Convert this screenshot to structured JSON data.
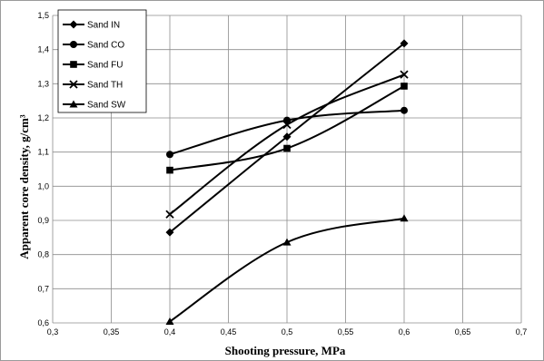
{
  "chart_data": {
    "type": "line",
    "xlabel": "Shooting pressure, MPa",
    "ylabel": "Apparent core density, g/cm³",
    "xlim": [
      0.3,
      0.7
    ],
    "ylim": [
      0.6,
      1.5
    ],
    "x_ticks": [
      "0,3",
      "0,35",
      "0,4",
      "0,45",
      "0,5",
      "0,55",
      "0,6",
      "0,65",
      "0,7"
    ],
    "y_ticks": [
      "0,6",
      "0,7",
      "0,8",
      "0,9",
      "1,0",
      "1,1",
      "1,2",
      "1,3",
      "1,4",
      "1,5"
    ],
    "grid": "vertical and horizontal",
    "legend_position": "top-left",
    "series": [
      {
        "name": "Sand IN",
        "marker": "diamond",
        "x": [
          0.4,
          0.5,
          0.6
        ],
        "y": [
          0.865,
          1.145,
          1.418
        ]
      },
      {
        "name": "Sand CO",
        "marker": "circle",
        "x": [
          0.4,
          0.5,
          0.6
        ],
        "y": [
          1.093,
          1.193,
          1.222
        ]
      },
      {
        "name": "Sand FU",
        "marker": "square",
        "x": [
          0.4,
          0.5,
          0.6
        ],
        "y": [
          1.047,
          1.111,
          1.293
        ]
      },
      {
        "name": "Sand TH",
        "marker": "x",
        "x": [
          0.4,
          0.5,
          0.6
        ],
        "y": [
          0.918,
          1.18,
          1.327
        ]
      },
      {
        "name": "Sand SW",
        "marker": "triangle",
        "x": [
          0.4,
          0.5,
          0.6
        ],
        "y": [
          0.604,
          0.836,
          0.906
        ]
      }
    ]
  }
}
